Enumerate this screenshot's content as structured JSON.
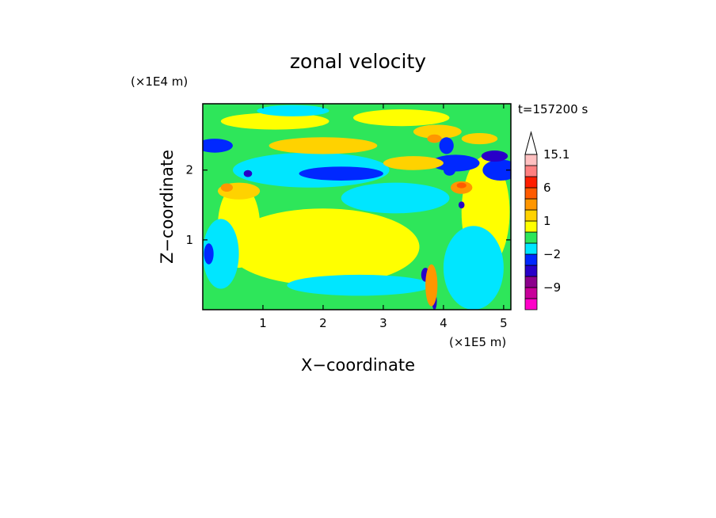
{
  "chart_data": {
    "type": "heatmap",
    "title": "zonal velocity",
    "xlabel": "X−coordinate",
    "ylabel": "Z−coordinate",
    "x_multiplier": "(×1E5 m)",
    "y_multiplier": "(×1E4 m)",
    "time_label": "t=157200 s",
    "xlim": [
      0,
      5.12
    ],
    "ylim": [
      0,
      2.95
    ],
    "x_ticks": [
      "1",
      "2",
      "3",
      "4",
      "5"
    ],
    "y_ticks": [
      "1",
      "2"
    ],
    "colorbar": {
      "levels": [
        -15,
        -12,
        -9,
        -6,
        -4,
        -2,
        -1,
        0,
        1,
        2,
        4,
        6,
        9,
        12,
        15.1
      ],
      "colors": [
        "#ff00c8",
        "#c8009a",
        "#8c008c",
        "#2800c8",
        "#0028ff",
        "#00e6ff",
        "#2ee65a",
        "#ffff00",
        "#ffd200",
        "#ff9600",
        "#ff5a00",
        "#ff1e00",
        "#ff8080",
        "#ffc0c0",
        "#ffffff"
      ],
      "labels": [
        "15.1",
        "6",
        "1",
        "−2",
        "−9"
      ]
    },
    "blobs": [
      {
        "value": 0.5,
        "x": 2.0,
        "y": 0.9,
        "rx": 1.6,
        "ry": 0.55
      },
      {
        "value": 0.5,
        "x": 1.2,
        "y": 2.7,
        "rx": 0.9,
        "ry": 0.12
      },
      {
        "value": 0.5,
        "x": 3.3,
        "y": 2.75,
        "rx": 0.8,
        "ry": 0.12
      },
      {
        "value": 0.5,
        "x": 0.6,
        "y": 1.2,
        "rx": 0.35,
        "ry": 0.6
      },
      {
        "value": 0.5,
        "x": 4.7,
        "y": 1.4,
        "rx": 0.4,
        "ry": 0.8
      },
      {
        "value": -1.5,
        "x": 1.8,
        "y": 2.0,
        "rx": 1.3,
        "ry": 0.25
      },
      {
        "value": -1.5,
        "x": 3.2,
        "y": 1.6,
        "rx": 0.9,
        "ry": 0.22
      },
      {
        "value": -1.5,
        "x": 0.3,
        "y": 0.8,
        "rx": 0.3,
        "ry": 0.5
      },
      {
        "value": -1.5,
        "x": 4.5,
        "y": 0.6,
        "rx": 0.5,
        "ry": 0.6
      },
      {
        "value": -1.5,
        "x": 2.6,
        "y": 0.35,
        "rx": 1.2,
        "ry": 0.15
      },
      {
        "value": -1.5,
        "x": 1.5,
        "y": 2.85,
        "rx": 0.6,
        "ry": 0.08
      },
      {
        "value": -3.0,
        "x": 2.3,
        "y": 1.95,
        "rx": 0.7,
        "ry": 0.1
      },
      {
        "value": -3.0,
        "x": 4.2,
        "y": 2.1,
        "rx": 0.4,
        "ry": 0.12
      },
      {
        "value": -3.0,
        "x": 0.2,
        "y": 2.35,
        "rx": 0.3,
        "ry": 0.1
      },
      {
        "value": -3.0,
        "x": 4.95,
        "y": 2.0,
        "rx": 0.3,
        "ry": 0.15
      },
      {
        "value": 1.5,
        "x": 2.0,
        "y": 2.35,
        "rx": 0.9,
        "ry": 0.12
      },
      {
        "value": 1.5,
        "x": 3.5,
        "y": 2.1,
        "rx": 0.5,
        "ry": 0.1
      },
      {
        "value": 1.5,
        "x": 0.6,
        "y": 1.7,
        "rx": 0.35,
        "ry": 0.12
      },
      {
        "value": 1.5,
        "x": 3.9,
        "y": 2.55,
        "rx": 0.4,
        "ry": 0.1
      },
      {
        "value": 1.5,
        "x": 4.6,
        "y": 2.45,
        "rx": 0.3,
        "ry": 0.08
      },
      {
        "value": 3.0,
        "x": 4.3,
        "y": 1.75,
        "rx": 0.18,
        "ry": 0.09
      },
      {
        "value": 3.0,
        "x": 3.85,
        "y": 2.45,
        "rx": 0.12,
        "ry": 0.06
      },
      {
        "value": 3.0,
        "x": 0.4,
        "y": 1.75,
        "rx": 0.1,
        "ry": 0.06
      },
      {
        "value": 5.0,
        "x": 4.3,
        "y": 1.78,
        "rx": 0.08,
        "ry": 0.04
      },
      {
        "value": -5.0,
        "x": 4.85,
        "y": 2.2,
        "rx": 0.22,
        "ry": 0.08
      },
      {
        "value": -5.0,
        "x": 0.75,
        "y": 1.95,
        "rx": 0.07,
        "ry": 0.05
      },
      {
        "value": -5.0,
        "x": 3.7,
        "y": 0.5,
        "rx": 0.07,
        "ry": 0.1
      },
      {
        "value": -5.0,
        "x": 3.85,
        "y": 0.12,
        "rx": 0.04,
        "ry": 0.12
      },
      {
        "value": -5.0,
        "x": 4.3,
        "y": 1.5,
        "rx": 0.05,
        "ry": 0.05
      },
      {
        "value": -3.0,
        "x": 4.05,
        "y": 2.35,
        "rx": 0.12,
        "ry": 0.12
      },
      {
        "value": -3.0,
        "x": 4.1,
        "y": 2.0,
        "rx": 0.1,
        "ry": 0.08
      },
      {
        "value": -3.0,
        "x": 0.1,
        "y": 0.8,
        "rx": 0.08,
        "ry": 0.15
      },
      {
        "value": 3.0,
        "x": 3.8,
        "y": 0.35,
        "rx": 0.1,
        "ry": 0.3
      }
    ]
  }
}
